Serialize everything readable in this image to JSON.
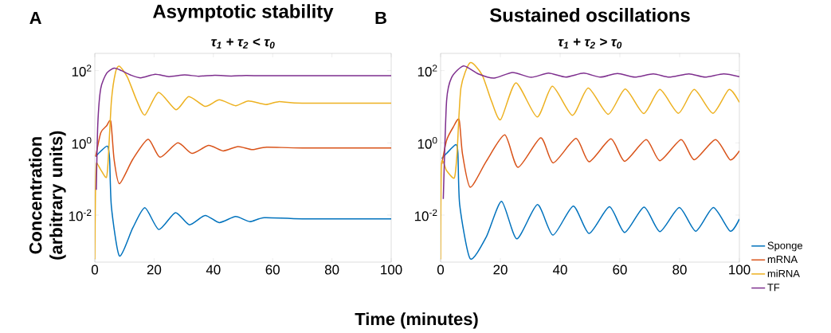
{
  "chart_data": [
    {
      "type": "line",
      "title": "Asymptotic stability",
      "subtitle": "τ$_{1}$ + τ$_{2}$  < τ$_{0}$",
      "ylabel": "Concentration (arbitrary units)",
      "annotations": [
        "A"
      ],
      "log": "y",
      "xlim": [
        0,
        100
      ],
      "xticks": [
        0,
        20,
        40,
        60,
        80,
        100
      ],
      "ylim": [
        0.0005,
        300
      ],
      "yticks": [
        {
          "value": 0.01,
          "label": "10$^{-2}$"
        },
        {
          "value": 1,
          "label": "10$^{0}$"
        },
        {
          "value": 100,
          "label": "10$^{2}$"
        }
      ],
      "series": [
        {
          "color": "#0072bd",
          "x": [
            0.3,
            2,
            4.3,
            5,
            5.6,
            8.3,
            12.8,
            16.9,
            21.6,
            27.2,
            31.9,
            37.2,
            42,
            47.5,
            52.3,
            57.2,
            70,
            100
          ],
          "values": [
            0.42,
            0.59,
            0.81,
            0.35,
            0.017,
            0.00074,
            0.0044,
            0.016,
            0.004,
            0.0117,
            0.0054,
            0.0098,
            0.0062,
            0.0091,
            0.0066,
            0.0085,
            0.0079,
            0.0079
          ]
        },
        {
          "color": "#d95319",
          "x": [
            0.3,
            2,
            3.9,
            5.4,
            6.5,
            8.3,
            12.8,
            18,
            22,
            28,
            32.8,
            38.4,
            43.3,
            48.3,
            53.2,
            58,
            70,
            100
          ],
          "values": [
            0.42,
            1.9,
            2.9,
            3.9,
            0.35,
            0.074,
            0.35,
            1.26,
            0.4,
            1.0,
            0.51,
            0.85,
            0.6,
            0.79,
            0.65,
            0.76,
            0.72,
            0.72
          ]
        },
        {
          "color": "#edb120",
          "x": [
            0,
            0.2,
            0.5,
            1,
            2,
            3.9,
            4.5,
            5.6,
            7,
            8.3,
            11,
            14.2,
            16.9,
            21.5,
            27.4,
            31.7,
            37.3,
            42,
            47.5,
            51.8,
            57.7,
            62,
            70,
            100
          ],
          "values": [
            0.0006,
            0.032,
            0.25,
            0.25,
            0.18,
            0.11,
            0.32,
            14.5,
            91,
            132,
            66,
            14.5,
            5.9,
            25,
            8.3,
            19,
            10.2,
            15.5,
            10.7,
            14.5,
            11.5,
            13.8,
            12.6,
            12.6
          ]
        },
        {
          "color": "#7e2f8e",
          "x": [
            0.5,
            1,
            2,
            4,
            6.5,
            9,
            12,
            15.5,
            20.4,
            25,
            30.3,
            35,
            40.5,
            46,
            51,
            57,
            70,
            100
          ],
          "values": [
            0.05,
            3.2,
            32,
            85,
            117,
            100,
            76,
            63,
            79,
            68,
            76,
            70,
            74,
            71,
            73,
            72,
            72,
            72
          ]
        }
      ]
    },
    {
      "type": "line",
      "title": "Sustained oscillations",
      "subtitle": "τ$_{1}$ + τ$_{2}$  > τ$_{0}$",
      "xlabel": "Time (minutes)",
      "annotations": [
        "B"
      ],
      "log": "y",
      "legend": "right",
      "xlim": [
        0,
        100
      ],
      "xticks": [
        0,
        20,
        40,
        60,
        80,
        100
      ],
      "ylim": [
        0.0005,
        300
      ],
      "yticks": [
        {
          "value": 0.01,
          "label": "10$^{-2}$"
        },
        {
          "value": 1,
          "label": "10$^{0}$"
        },
        {
          "value": 100,
          "label": "10$^{2}$"
        }
      ],
      "series": [
        {
          "name": "Sponge",
          "color": "#0072bd",
          "x": [
            0.4,
            2,
            5.1,
            5.8,
            6.4,
            9.9,
            15.3,
            20.4,
            25.5,
            32.4,
            37.6,
            44.4,
            49.7,
            56.5,
            61.6,
            68.1,
            73.4,
            79.9,
            85.4,
            91.3,
            96.9,
            100
          ],
          "values": [
            0.37,
            0.51,
            0.89,
            0.51,
            0.019,
            0.00062,
            0.0025,
            0.024,
            0.0022,
            0.0195,
            0.0028,
            0.0178,
            0.0031,
            0.017,
            0.0033,
            0.0166,
            0.0035,
            0.0162,
            0.0036,
            0.0162,
            0.0036,
            0.0078
          ]
        },
        {
          "name": "mRNA",
          "color": "#d95319",
          "x": [
            0.4,
            2,
            4.2,
            6.2,
            7.3,
            9.9,
            15.3,
            21.5,
            25.9,
            33.5,
            37.7,
            45.3,
            49.7,
            57,
            61.6,
            68.8,
            73.4,
            80.5,
            84.9,
            92,
            96.9,
            100
          ],
          "values": [
            0.26,
            1.17,
            2.7,
            4.4,
            0.51,
            0.059,
            0.31,
            1.66,
            0.21,
            1.38,
            0.28,
            1.32,
            0.3,
            1.29,
            0.31,
            1.23,
            0.32,
            1.23,
            0.34,
            1.23,
            0.34,
            0.6
          ]
        },
        {
          "name": "miRNA",
          "color": "#edb120",
          "x": [
            0,
            0.3,
            2,
            4.6,
            5.5,
            6.8,
            9.9,
            13.9,
            17,
            20.1,
            25.2,
            32.3,
            37.4,
            44.1,
            49.4,
            56.1,
            61.8,
            68,
            73.4,
            79.6,
            84.9,
            91.1,
            96.5,
            100
          ],
          "values": [
            0.0006,
            0.26,
            0.17,
            0.107,
            0.51,
            33,
            166,
            76,
            14.5,
            4.4,
            46,
            5.2,
            37,
            5.8,
            33,
            6.2,
            31,
            6.5,
            30,
            6.6,
            30,
            6.6,
            30,
            13.2
          ]
        },
        {
          "name": "TF",
          "color": "#7e2f8e",
          "x": [
            0.9,
            2,
            3.7,
            7.7,
            12.6,
            17.9,
            24.1,
            30.3,
            36.1,
            41.9,
            47.9,
            53.4,
            59.2,
            65,
            71.2,
            76.5,
            83.1,
            88.5,
            94.7,
            100
          ],
          "values": [
            0.028,
            14.5,
            65,
            135,
            81,
            62,
            89,
            65,
            85,
            66,
            85,
            66,
            83,
            66,
            81,
            66,
            81,
            66,
            81,
            68
          ]
        }
      ]
    }
  ]
}
